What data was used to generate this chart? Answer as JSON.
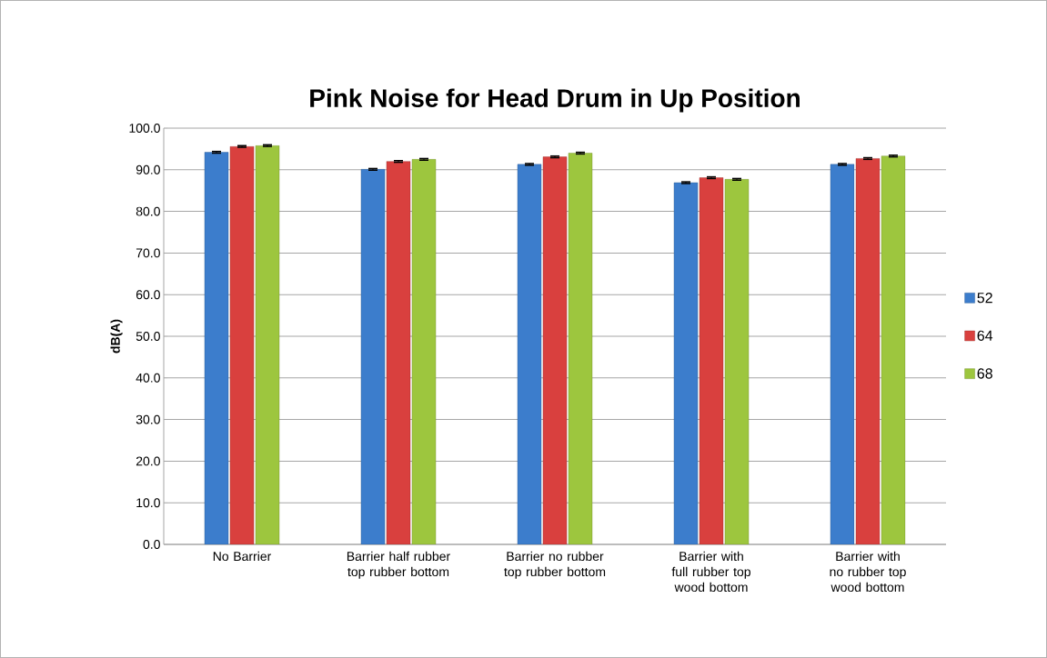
{
  "chart_data": {
    "type": "bar",
    "title": "Pink Noise for Head Drum in Up Position",
    "ylabel": "dB(A)",
    "categories": [
      "No Barrier",
      "Barrier half rubber top rubber bottom",
      "Barrier no rubber top rubber bottom",
      "Barrier with full rubber top wood bottom",
      "Barrier with no rubber top wood bottom"
    ],
    "series": [
      {
        "name": "52",
        "color": "#3c7dcc",
        "values": [
          94.2,
          90.1,
          91.3,
          86.9,
          91.3
        ],
        "errors": [
          0.2,
          0.2,
          0.2,
          0.2,
          0.2
        ]
      },
      {
        "name": "64",
        "color": "#d9403e",
        "values": [
          95.6,
          92.0,
          93.1,
          88.1,
          92.7
        ],
        "errors": [
          0.2,
          0.2,
          0.2,
          0.2,
          0.2
        ]
      },
      {
        "name": "68",
        "color": "#9dc63e",
        "values": [
          95.8,
          92.5,
          94.0,
          87.7,
          93.3
        ],
        "errors": [
          0.2,
          0.2,
          0.2,
          0.2,
          0.2
        ]
      }
    ],
    "ylim": [
      0,
      100
    ],
    "yticks": [
      {
        "value": 0,
        "label": "0.0"
      },
      {
        "value": 10,
        "label": "10.0"
      },
      {
        "value": 20,
        "label": "20.0"
      },
      {
        "value": 30,
        "label": "30.0"
      },
      {
        "value": 40,
        "label": "40.0"
      },
      {
        "value": 50,
        "label": "50.0"
      },
      {
        "value": 60,
        "label": "60.0"
      },
      {
        "value": 70,
        "label": "70.0"
      },
      {
        "value": 80,
        "label": "80.0"
      },
      {
        "value": 90,
        "label": "90.0"
      },
      {
        "value": 100,
        "label": "100.0"
      }
    ],
    "grid": "y",
    "legend": "right"
  }
}
